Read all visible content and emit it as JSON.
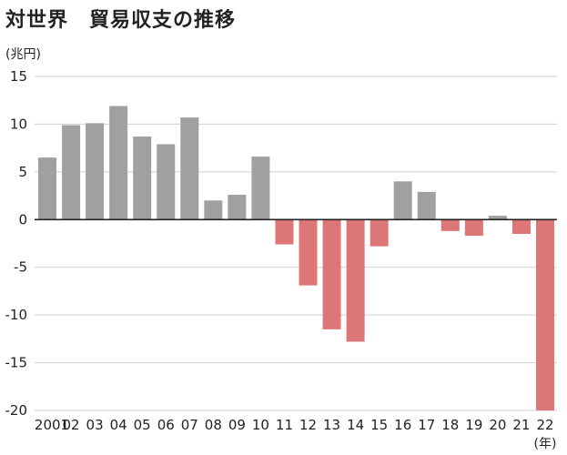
{
  "title": "対世界　貿易収支の推移",
  "y_unit": "(兆円)",
  "x_unit": "(年)",
  "colors": {
    "positive": "#a0a0a0",
    "negative": "#dd7677",
    "grid": "#cfcfcf",
    "zero": "#222222"
  },
  "chart_data": {
    "type": "bar",
    "title": "対世界　貿易収支の推移",
    "ylabel": "(兆円)",
    "xlabel": "(年)",
    "ylim": [
      -20,
      15
    ],
    "yticks": [
      15,
      10,
      5,
      0,
      -5,
      -10,
      -15,
      -20
    ],
    "grid": true,
    "categories": [
      "2001",
      "02",
      "03",
      "04",
      "05",
      "06",
      "07",
      "08",
      "09",
      "10",
      "11",
      "12",
      "13",
      "14",
      "15",
      "16",
      "17",
      "18",
      "19",
      "20",
      "21",
      "22"
    ],
    "values": [
      6.5,
      9.9,
      10.1,
      11.9,
      8.7,
      7.9,
      10.7,
      2.0,
      2.6,
      6.6,
      -2.6,
      -6.9,
      -11.5,
      -12.8,
      -2.8,
      4.0,
      2.9,
      -1.2,
      -1.7,
      0.4,
      -1.5,
      -20.0
    ]
  }
}
